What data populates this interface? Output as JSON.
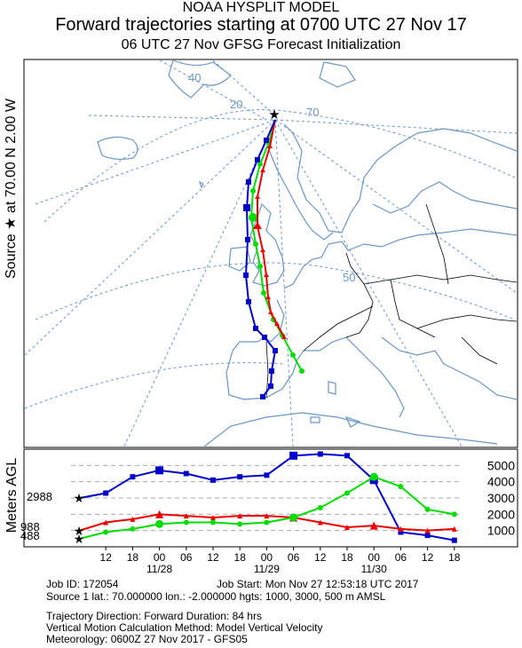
{
  "header": {
    "model": "NOAA HYSPLIT MODEL",
    "title": "Forward trajectories starting at 0700 UTC 27 Nov 17",
    "subtitle": "06 UTC 27 Nov    GFSG  Forecast Initialization"
  },
  "side_label": {
    "source_word": "Source",
    "star": "★",
    "at": "at",
    "lat": "70.00 N",
    "lon": "2.00 W"
  },
  "map": {
    "graticule_labels": [
      "40",
      "20",
      "70",
      "50"
    ],
    "colors": {
      "coast": "#6a97c8",
      "graticule": "#6a97c8",
      "border": "#000000"
    },
    "trajectories": [
      {
        "height": 488,
        "color": "#00dd00",
        "marker": "circle"
      },
      {
        "height": 988,
        "color": "#ee0000",
        "marker": "triangle"
      },
      {
        "height": 2988,
        "color": "#0000cc",
        "marker": "square"
      }
    ]
  },
  "vertical": {
    "ylabel": "Meters AGL",
    "right_ticks": [
      "5000",
      "4000",
      "3000",
      "2000",
      "1000"
    ],
    "start_labels": [
      "2988",
      "988",
      "488"
    ],
    "hour_ticks": [
      "12",
      "18",
      "00",
      "06",
      "12",
      "18",
      "00",
      "06",
      "12",
      "18",
      "00",
      "06",
      "12",
      "18"
    ],
    "date_labels": [
      "11/28",
      "11/29",
      "11/30"
    ]
  },
  "footer": {
    "line1": "Job ID: 172054",
    "line1b": "Job Start: Mon Nov 27 12:53:18 UTC 2017",
    "line2": "Source 1 lat.: 70.000000  lon.: -2.000000  hgts: 1000, 3000, 500 m AMSL",
    "line3": "Trajectory Direction: Forward      Duration: 84 hrs",
    "line4": "Vertical Motion Calculation Method:      Model Vertical Velocity",
    "line5": "Meteorology: 0600Z 27 Nov 2017 - GFS05"
  },
  "chart_data": {
    "type": "line",
    "x": [
      "11/27 07",
      "11/27 12",
      "11/27 18",
      "11/28 00",
      "11/28 06",
      "11/28 12",
      "11/28 18",
      "11/29 00",
      "11/29 06",
      "11/29 12",
      "11/29 18",
      "11/30 00",
      "11/30 06",
      "11/30 12",
      "11/30 18"
    ],
    "series": [
      {
        "name": "2988",
        "values": [
          2988,
          3300,
          4300,
          4700,
          4500,
          4100,
          4300,
          4400,
          5600,
          5700,
          5600,
          4100,
          900,
          700,
          400
        ]
      },
      {
        "name": "988",
        "values": [
          988,
          1500,
          1700,
          2000,
          1900,
          1800,
          1900,
          1900,
          1800,
          1500,
          1200,
          1300,
          1100,
          1000,
          1100
        ]
      },
      {
        "name": "488",
        "values": [
          488,
          900,
          1100,
          1400,
          1500,
          1500,
          1400,
          1500,
          1800,
          2400,
          3300,
          4300,
          3700,
          2300,
          2000
        ]
      }
    ],
    "ylabel": "Meters AGL",
    "ylim": [
      0,
      6000
    ]
  }
}
